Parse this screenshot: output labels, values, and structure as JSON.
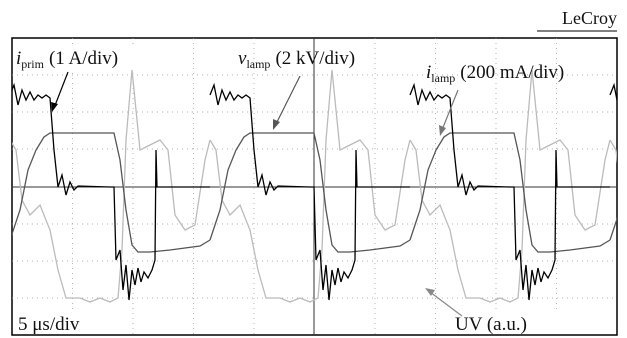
{
  "brand": "LeCroy",
  "labels": {
    "i_prim": {
      "symbol": "i",
      "subscript": "prim",
      "scale": "(1 A/div)"
    },
    "v_lamp": {
      "symbol": "v",
      "subscript": "lamp",
      "scale": "(2 kV/div)"
    },
    "i_lamp": {
      "symbol": "i",
      "subscript": "lamp",
      "scale": "(200 mA/div)"
    },
    "timebase": "5 μs/div",
    "uv": "UV (a.u.)"
  }
}
